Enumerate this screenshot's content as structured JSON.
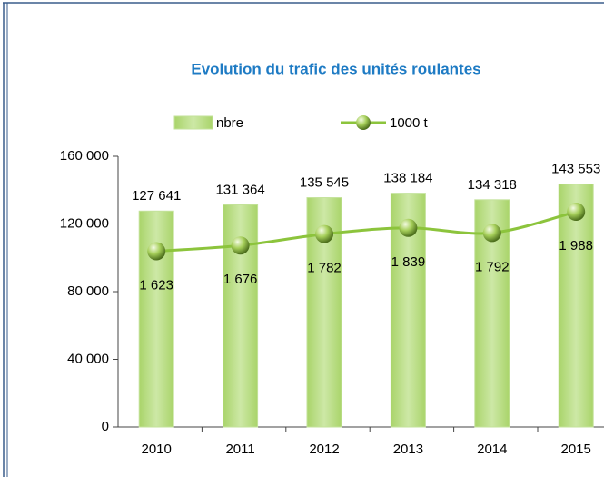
{
  "chart_data": {
    "type": "bar",
    "title": "Evolution du trafic des unités roulantes",
    "categories": [
      "2010",
      "2011",
      "2012",
      "2013",
      "2014",
      "2015"
    ],
    "series": [
      {
        "name": "nbre",
        "type": "bar",
        "color": "#c3e29a",
        "values": [
          127641,
          131364,
          135545,
          138184,
          134318,
          143553
        ],
        "value_labels": [
          "127 641",
          "131 364",
          "135 545",
          "138 184",
          "134 318",
          "143 553"
        ]
      },
      {
        "name": "1000 t",
        "type": "line",
        "axis": "y2",
        "color": "#8cc43c",
        "values": [
          1623,
          1676,
          1782,
          1839,
          1792,
          1988
        ],
        "value_labels": [
          "1 623",
          "1 676",
          "1 782",
          "1 839",
          "1 792",
          "1 988"
        ]
      }
    ],
    "ylim": [
      0,
      160000
    ],
    "yticks": [
      {
        "value": 0,
        "label": "0"
      },
      {
        "value": 40000,
        "label": "40 000"
      },
      {
        "value": 80000,
        "label": "80 000"
      },
      {
        "value": 120000,
        "label": "120 000"
      },
      {
        "value": 160000,
        "label": "160 000"
      }
    ],
    "y2lim": [
      0,
      2500
    ],
    "legend": "top"
  }
}
